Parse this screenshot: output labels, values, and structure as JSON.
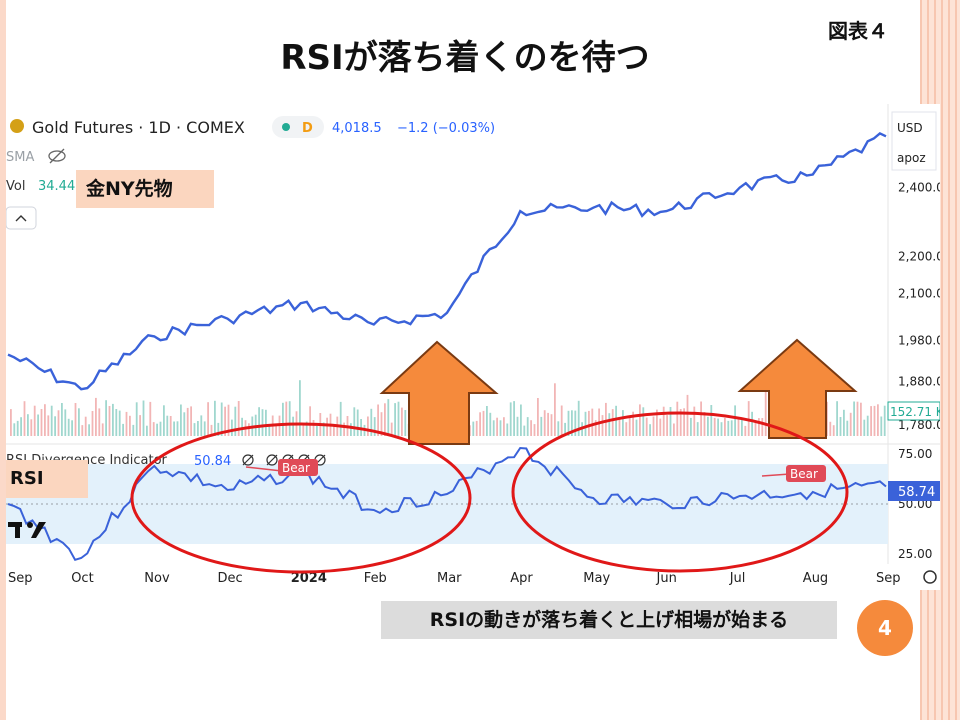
{
  "slide": {
    "title": "RSIが落ち着くのを待つ",
    "figure_label": "図表４",
    "caption": "RSIの動きが落ち着くと上げ相場が始まる",
    "page_number": "4"
  },
  "chart_header": {
    "symbol": "Gold Futures · 1D · COMEX",
    "exchange_badge": "D",
    "price": "4,018.5",
    "change": "−1.2 (−0.03%)",
    "sma_label": "SMA",
    "vol_label": "Vol",
    "vol_value": "34.44",
    "currency": "USD",
    "unit": "apoz",
    "gold_label": "金NY先物",
    "rsi_label": "RSI",
    "rsi_indicator": "RSI Divergence Indicator",
    "rsi_value": "50.84",
    "rsi_last": "58.74",
    "vol_last": "152.71 K",
    "bear_label": "Bear"
  },
  "colors": {
    "price_line": "#3a62d9",
    "rsi_line": "#3a62d9",
    "rsi_band": "#e3f1fb",
    "arrow_fill": "#f58a3c",
    "arrow_stroke": "#7a3a12",
    "ellipse": "#e01818",
    "label_bg": "#fbd6bf",
    "bear_bg": "#e04a57",
    "vol_up": "#8fd0c5",
    "vol_down": "#f0a8a8"
  },
  "chart_data": [
    {
      "type": "line",
      "title": "Gold Futures · 1D · COMEX",
      "x": [
        "Sep",
        "Oct",
        "Nov",
        "Dec",
        "2024",
        "Feb",
        "Mar",
        "Apr",
        "May",
        "Jun",
        "Jul",
        "Aug",
        "Sep"
      ],
      "series": [
        {
          "name": "Gold Futures",
          "values": [
            1945,
            1862,
            1990,
            2035,
            2075,
            2020,
            2050,
            2330,
            2340,
            2330,
            2400,
            2440,
            2560
          ]
        }
      ],
      "y_ticks": [
        "2,400.0",
        "2,200.0",
        "2,100.0",
        "1,980.0",
        "1,880.0",
        "1,780.0"
      ],
      "ylim": [
        1760,
        2600
      ],
      "log_scale": true,
      "last_value": 2560
    },
    {
      "type": "line",
      "title": "RSI Divergence Indicator",
      "x": [
        "Sep",
        "Oct",
        "Nov",
        "Dec",
        "2024",
        "Feb",
        "Mar",
        "Apr",
        "May",
        "Jun",
        "Jul",
        "Aug",
        "Sep"
      ],
      "series": [
        {
          "name": "RSI",
          "values": [
            50,
            23,
            69,
            57,
            66,
            47,
            55,
            78,
            53,
            50,
            54,
            56,
            58.74
          ]
        }
      ],
      "y_ticks": [
        "75.00",
        "50.00",
        "25.00"
      ],
      "ylim": [
        20,
        80
      ],
      "band": [
        30,
        70
      ],
      "annotations": [
        "Bear",
        "Bear"
      ]
    }
  ]
}
